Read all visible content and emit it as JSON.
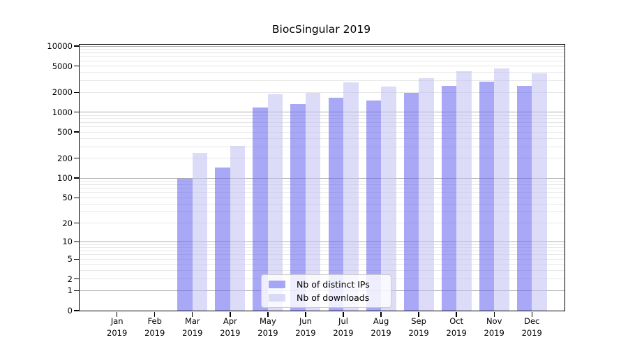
{
  "title": "BiocSingular 2019",
  "colors": {
    "background": "#ffffff",
    "axis": "#000000",
    "major_grid": "#ababab",
    "minor_grid": "#e7e7e7",
    "legend_border": "#cccccc",
    "distinct_ips_bar": "rgba(97,97,239,0.55)",
    "downloads_bar": "rgba(191,191,242,0.55)"
  },
  "chart_data": {
    "type": "bar",
    "title": "BiocSingular 2019",
    "xlabel": "",
    "ylabel": "",
    "y_scale": "log1p",
    "ylim": [
      0,
      10000
    ],
    "y_ticks": [
      0,
      1,
      2,
      5,
      10,
      20,
      50,
      100,
      200,
      500,
      1000,
      2000,
      5000,
      10000
    ],
    "grid": "horizontal log gridlines, major at powers of 10, minor at 2-9 per decade",
    "legend_position": "inside bottom-center",
    "categories": [
      {
        "month": "Jan",
        "year": "2019"
      },
      {
        "month": "Feb",
        "year": "2019"
      },
      {
        "month": "Mar",
        "year": "2019"
      },
      {
        "month": "Apr",
        "year": "2019"
      },
      {
        "month": "May",
        "year": "2019"
      },
      {
        "month": "Jun",
        "year": "2019"
      },
      {
        "month": "Jul",
        "year": "2019"
      },
      {
        "month": "Aug",
        "year": "2019"
      },
      {
        "month": "Sep",
        "year": "2019"
      },
      {
        "month": "Oct",
        "year": "2019"
      },
      {
        "month": "Nov",
        "year": "2019"
      },
      {
        "month": "Dec",
        "year": "2019"
      }
    ],
    "series": [
      {
        "name": "Nb of distinct IPs",
        "color": "rgba(97,97,239,0.55)",
        "values": [
          0,
          0,
          97,
          146,
          1180,
          1340,
          1660,
          1500,
          1950,
          2500,
          2880,
          2500
        ]
      },
      {
        "name": "Nb of downloads",
        "color": "rgba(191,191,242,0.55)",
        "values": [
          0,
          0,
          240,
          305,
          1870,
          1960,
          2830,
          2450,
          3260,
          4160,
          4590,
          3860
        ]
      }
    ]
  }
}
